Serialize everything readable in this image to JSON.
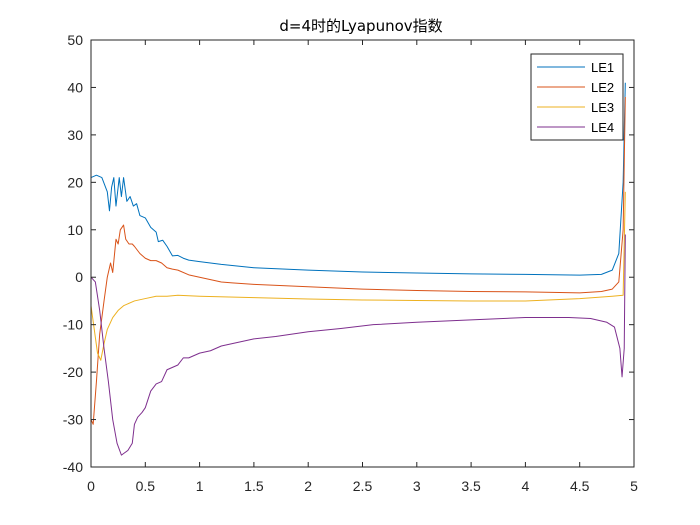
{
  "chart_data": {
    "type": "line",
    "title": "d=4时的Lyapunov指数",
    "xlabel": "",
    "ylabel": "",
    "xlim": [
      0,
      5
    ],
    "ylim": [
      -40,
      50
    ],
    "grid": false,
    "legend_position": "top-right",
    "x_ticks": [
      0,
      0.5,
      1,
      1.5,
      2,
      2.5,
      3,
      3.5,
      4,
      4.5,
      5
    ],
    "x_tick_labels": [
      "0",
      "0.5",
      "1",
      "1.5",
      "2",
      "2.5",
      "3",
      "3.5",
      "4",
      "4.5",
      "5"
    ],
    "y_ticks": [
      -40,
      -30,
      -20,
      -10,
      0,
      10,
      20,
      30,
      40,
      50
    ],
    "y_tick_labels": [
      "-40",
      "-30",
      "-20",
      "-10",
      "0",
      "10",
      "20",
      "30",
      "40",
      "50"
    ],
    "series": [
      {
        "name": "LE1",
        "color": "#0072BD",
        "points": [
          [
            0.0,
            21
          ],
          [
            0.05,
            21.5
          ],
          [
            0.1,
            21
          ],
          [
            0.15,
            18
          ],
          [
            0.17,
            14
          ],
          [
            0.19,
            19
          ],
          [
            0.21,
            21
          ],
          [
            0.23,
            15
          ],
          [
            0.26,
            21
          ],
          [
            0.28,
            17
          ],
          [
            0.3,
            21
          ],
          [
            0.33,
            16
          ],
          [
            0.36,
            17
          ],
          [
            0.39,
            15
          ],
          [
            0.42,
            15.5
          ],
          [
            0.45,
            13
          ],
          [
            0.5,
            12.5
          ],
          [
            0.55,
            10.5
          ],
          [
            0.6,
            9.5
          ],
          [
            0.62,
            7.5
          ],
          [
            0.66,
            7.8
          ],
          [
            0.7,
            6.5
          ],
          [
            0.75,
            4.5
          ],
          [
            0.8,
            4.6
          ],
          [
            0.85,
            4
          ],
          [
            0.9,
            3.6
          ],
          [
            1.0,
            3.3
          ],
          [
            1.2,
            2.7
          ],
          [
            1.5,
            2.0
          ],
          [
            2.0,
            1.5
          ],
          [
            2.5,
            1.1
          ],
          [
            3.0,
            0.9
          ],
          [
            3.5,
            0.7
          ],
          [
            4.0,
            0.6
          ],
          [
            4.5,
            0.45
          ],
          [
            4.7,
            0.6
          ],
          [
            4.8,
            1.5
          ],
          [
            4.86,
            5
          ],
          [
            4.9,
            20
          ],
          [
            4.92,
            41
          ]
        ]
      },
      {
        "name": "LE2",
        "color": "#D95319",
        "points": [
          [
            0.0,
            -30
          ],
          [
            0.02,
            -31
          ],
          [
            0.05,
            -22
          ],
          [
            0.08,
            -12
          ],
          [
            0.12,
            -5
          ],
          [
            0.15,
            0
          ],
          [
            0.18,
            3
          ],
          [
            0.2,
            1
          ],
          [
            0.23,
            8
          ],
          [
            0.25,
            7
          ],
          [
            0.27,
            10
          ],
          [
            0.3,
            11
          ],
          [
            0.32,
            8
          ],
          [
            0.35,
            7
          ],
          [
            0.38,
            7
          ],
          [
            0.4,
            6.5
          ],
          [
            0.45,
            5
          ],
          [
            0.5,
            4
          ],
          [
            0.55,
            3.5
          ],
          [
            0.6,
            3.5
          ],
          [
            0.65,
            3
          ],
          [
            0.7,
            2
          ],
          [
            0.75,
            1.7
          ],
          [
            0.8,
            1.5
          ],
          [
            0.9,
            0.5
          ],
          [
            1.0,
            0
          ],
          [
            1.1,
            -0.5
          ],
          [
            1.2,
            -1
          ],
          [
            1.3,
            -1.2
          ],
          [
            1.5,
            -1.5
          ],
          [
            2.0,
            -2
          ],
          [
            2.5,
            -2.5
          ],
          [
            3.0,
            -2.8
          ],
          [
            3.5,
            -3
          ],
          [
            4.0,
            -3.1
          ],
          [
            4.5,
            -3.3
          ],
          [
            4.7,
            -3
          ],
          [
            4.8,
            -2.5
          ],
          [
            4.86,
            -1
          ],
          [
            4.9,
            10
          ],
          [
            4.92,
            38
          ]
        ]
      },
      {
        "name": "LE3",
        "color": "#EDB120",
        "points": [
          [
            0.0,
            -6
          ],
          [
            0.03,
            -11
          ],
          [
            0.06,
            -16
          ],
          [
            0.09,
            -17.5
          ],
          [
            0.12,
            -14
          ],
          [
            0.15,
            -11
          ],
          [
            0.2,
            -8.5
          ],
          [
            0.25,
            -7
          ],
          [
            0.3,
            -6
          ],
          [
            0.4,
            -5
          ],
          [
            0.5,
            -4.5
          ],
          [
            0.6,
            -4
          ],
          [
            0.7,
            -4
          ],
          [
            0.8,
            -3.8
          ],
          [
            1.0,
            -4
          ],
          [
            1.5,
            -4.3
          ],
          [
            2.0,
            -4.6
          ],
          [
            2.5,
            -4.8
          ],
          [
            3.0,
            -4.9
          ],
          [
            3.5,
            -5
          ],
          [
            4.0,
            -5
          ],
          [
            4.5,
            -4.5
          ],
          [
            4.8,
            -4
          ],
          [
            4.9,
            -3.8
          ],
          [
            4.92,
            18
          ]
        ]
      },
      {
        "name": "LE4",
        "color": "#7E2F8E",
        "points": [
          [
            0.0,
            0
          ],
          [
            0.04,
            -1
          ],
          [
            0.08,
            -7
          ],
          [
            0.12,
            -15
          ],
          [
            0.16,
            -22
          ],
          [
            0.2,
            -30
          ],
          [
            0.24,
            -35
          ],
          [
            0.28,
            -37.5
          ],
          [
            0.31,
            -37
          ],
          [
            0.34,
            -36.5
          ],
          [
            0.38,
            -35
          ],
          [
            0.4,
            -31
          ],
          [
            0.43,
            -29.5
          ],
          [
            0.47,
            -28.5
          ],
          [
            0.5,
            -27.5
          ],
          [
            0.55,
            -24
          ],
          [
            0.6,
            -22.5
          ],
          [
            0.65,
            -22
          ],
          [
            0.7,
            -19.5
          ],
          [
            0.75,
            -19
          ],
          [
            0.8,
            -18.5
          ],
          [
            0.85,
            -17
          ],
          [
            0.9,
            -17
          ],
          [
            1.0,
            -16
          ],
          [
            1.1,
            -15.5
          ],
          [
            1.2,
            -14.5
          ],
          [
            1.3,
            -14
          ],
          [
            1.5,
            -13
          ],
          [
            1.7,
            -12.5
          ],
          [
            2.0,
            -11.5
          ],
          [
            2.3,
            -10.8
          ],
          [
            2.6,
            -10
          ],
          [
            3.0,
            -9.5
          ],
          [
            3.5,
            -9
          ],
          [
            4.0,
            -8.5
          ],
          [
            4.4,
            -8.5
          ],
          [
            4.6,
            -8.7
          ],
          [
            4.75,
            -9.5
          ],
          [
            4.82,
            -10.5
          ],
          [
            4.87,
            -15
          ],
          [
            4.89,
            -21
          ],
          [
            4.91,
            -15
          ],
          [
            4.92,
            9
          ]
        ]
      }
    ]
  }
}
